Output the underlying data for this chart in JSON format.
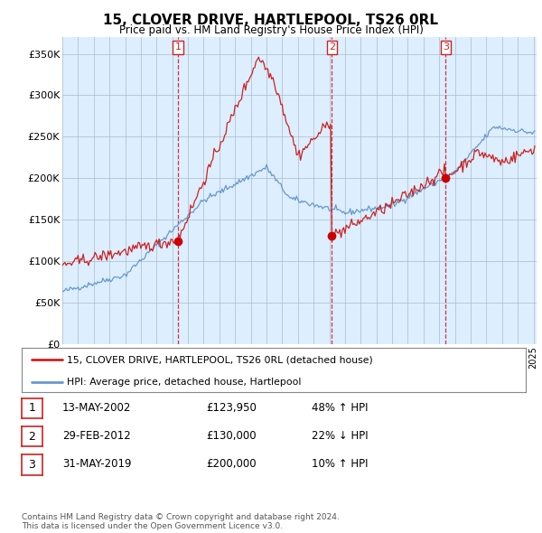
{
  "title": "15, CLOVER DRIVE, HARTLEPOOL, TS26 0RL",
  "subtitle": "Price paid vs. HM Land Registry's House Price Index (HPI)",
  "ylabel_ticks": [
    "£0",
    "£50K",
    "£100K",
    "£150K",
    "£200K",
    "£250K",
    "£300K",
    "£350K"
  ],
  "ytick_values": [
    0,
    50000,
    100000,
    150000,
    200000,
    250000,
    300000,
    350000
  ],
  "ylim": [
    0,
    370000
  ],
  "xlim_start": 1995.0,
  "xlim_end": 2025.2,
  "chart_bg_color": "#ddeeff",
  "hpi_color": "#6699cc",
  "price_color": "#cc2222",
  "vline_color": "#cc2222",
  "dot_color": "#cc0000",
  "sale_dates": [
    2002.36,
    2012.16,
    2019.41
  ],
  "sale_labels": [
    "1",
    "2",
    "3"
  ],
  "sale_prices": [
    123950,
    130000,
    200000
  ],
  "legend_label_price": "15, CLOVER DRIVE, HARTLEPOOL, TS26 0RL (detached house)",
  "legend_label_hpi": "HPI: Average price, detached house, Hartlepool",
  "table_rows": [
    {
      "num": "1",
      "date": "13-MAY-2002",
      "price": "£123,950",
      "hpi": "48% ↑ HPI"
    },
    {
      "num": "2",
      "date": "29-FEB-2012",
      "price": "£130,000",
      "hpi": "22% ↓ HPI"
    },
    {
      "num": "3",
      "date": "31-MAY-2019",
      "price": "£200,000",
      "hpi": "10% ↑ HPI"
    }
  ],
  "footnote": "Contains HM Land Registry data © Crown copyright and database right 2024.\nThis data is licensed under the Open Government Licence v3.0.",
  "background_color": "#ffffff",
  "grid_color": "#aabbcc"
}
